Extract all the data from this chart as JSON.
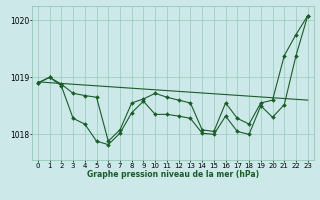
{
  "title": "Graphe pression niveau de la mer (hPa)",
  "background_color": "#cce8e8",
  "grid_color": "#88c4aa",
  "line_color": "#1a5c2a",
  "xlim": [
    -0.5,
    23.5
  ],
  "ylim": [
    1017.55,
    1020.25
  ],
  "yticks": [
    1018,
    1019,
    1020
  ],
  "xticks": [
    0,
    1,
    2,
    3,
    4,
    5,
    6,
    7,
    8,
    9,
    10,
    11,
    12,
    13,
    14,
    15,
    16,
    17,
    18,
    19,
    20,
    21,
    22,
    23
  ],
  "series": [
    {
      "x": [
        0,
        1,
        2,
        3,
        4,
        5,
        6,
        7,
        8,
        9,
        10,
        11,
        12,
        13,
        14,
        15,
        16,
        17,
        18,
        19,
        20,
        21,
        22,
        23
      ],
      "y": [
        1018.9,
        1019.0,
        1018.85,
        1018.28,
        1018.18,
        1017.88,
        1017.82,
        1018.02,
        1018.38,
        1018.58,
        1018.35,
        1018.35,
        1018.32,
        1018.28,
        1018.02,
        1018.0,
        1018.32,
        1018.05,
        1018.0,
        1018.5,
        1018.3,
        1018.52,
        1019.38,
        1020.08
      ],
      "marker": "D",
      "markersize": 2.0,
      "linewidth": 0.8
    },
    {
      "x": [
        0,
        1,
        2,
        3,
        4,
        5,
        6,
        7,
        8,
        9,
        10,
        11,
        12,
        13,
        14,
        15,
        16,
        17,
        18,
        19,
        20,
        21,
        22,
        23
      ],
      "y": [
        1018.9,
        1019.0,
        1018.88,
        1018.72,
        1018.68,
        1018.65,
        1017.88,
        1018.08,
        1018.55,
        1018.62,
        1018.72,
        1018.65,
        1018.6,
        1018.55,
        1018.08,
        1018.05,
        1018.55,
        1018.28,
        1018.18,
        1018.55,
        1018.6,
        1019.38,
        1019.75,
        1020.08
      ],
      "marker": "D",
      "markersize": 2.0,
      "linewidth": 0.8
    },
    {
      "x": [
        0,
        23
      ],
      "y": [
        1018.92,
        1018.6
      ],
      "marker": null,
      "markersize": 0,
      "linewidth": 0.8
    }
  ]
}
